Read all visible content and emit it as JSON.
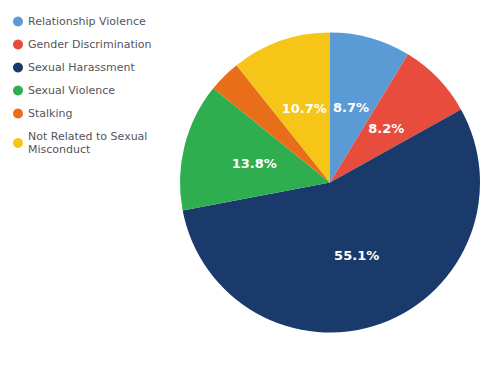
{
  "chart_data": {
    "type": "pie",
    "categories": [
      "Relationship Violence",
      "Gender Discrimination",
      "Sexual Harassment",
      "Sexual Violence",
      "Stalking",
      "Not Related to Sexual\nMisconduct"
    ],
    "values": [
      8.7,
      8.2,
      55.1,
      13.8,
      3.5,
      10.7
    ],
    "value_labels": [
      "8.7%",
      "8.2%",
      "55.1%",
      "13.8%",
      null,
      "10.7%"
    ],
    "colors": [
      "#5b9bd5",
      "#e84c3d",
      "#1a3a6b",
      "#2eae4e",
      "#e86e1a",
      "#f5c518"
    ],
    "data_labels": true,
    "legend": "upper left"
  }
}
